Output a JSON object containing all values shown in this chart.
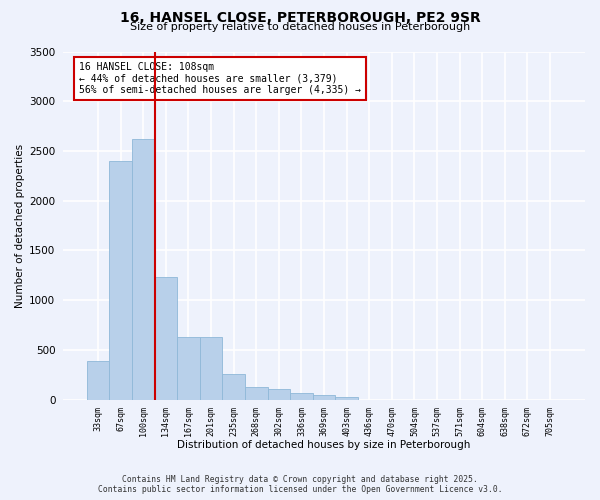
{
  "title_line1": "16, HANSEL CLOSE, PETERBOROUGH, PE2 9SR",
  "title_line2": "Size of property relative to detached houses in Peterborough",
  "xlabel": "Distribution of detached houses by size in Peterborough",
  "ylabel": "Number of detached properties",
  "categories": [
    "33sqm",
    "67sqm",
    "100sqm",
    "134sqm",
    "167sqm",
    "201sqm",
    "235sqm",
    "268sqm",
    "302sqm",
    "336sqm",
    "369sqm",
    "403sqm",
    "436sqm",
    "470sqm",
    "504sqm",
    "537sqm",
    "571sqm",
    "604sqm",
    "638sqm",
    "672sqm",
    "705sqm"
  ],
  "values": [
    390,
    2400,
    2620,
    1230,
    630,
    630,
    260,
    130,
    110,
    70,
    50,
    30,
    0,
    0,
    0,
    0,
    0,
    0,
    0,
    0,
    0
  ],
  "bar_color": "#b8d0ea",
  "bar_edge_color": "#8fb8d8",
  "vline_color": "#cc0000",
  "annotation_text": "16 HANSEL CLOSE: 108sqm\n← 44% of detached houses are smaller (3,379)\n56% of semi-detached houses are larger (4,335) →",
  "annotation_box_color": "#cc0000",
  "ylim": [
    0,
    3500
  ],
  "yticks": [
    0,
    500,
    1000,
    1500,
    2000,
    2500,
    3000,
    3500
  ],
  "footer_line1": "Contains HM Land Registry data © Crown copyright and database right 2025.",
  "footer_line2": "Contains public sector information licensed under the Open Government Licence v3.0.",
  "bg_color": "#eef2fc",
  "plot_bg_color": "#eef2fc",
  "grid_color": "#ffffff",
  "vline_bar_index": 2
}
